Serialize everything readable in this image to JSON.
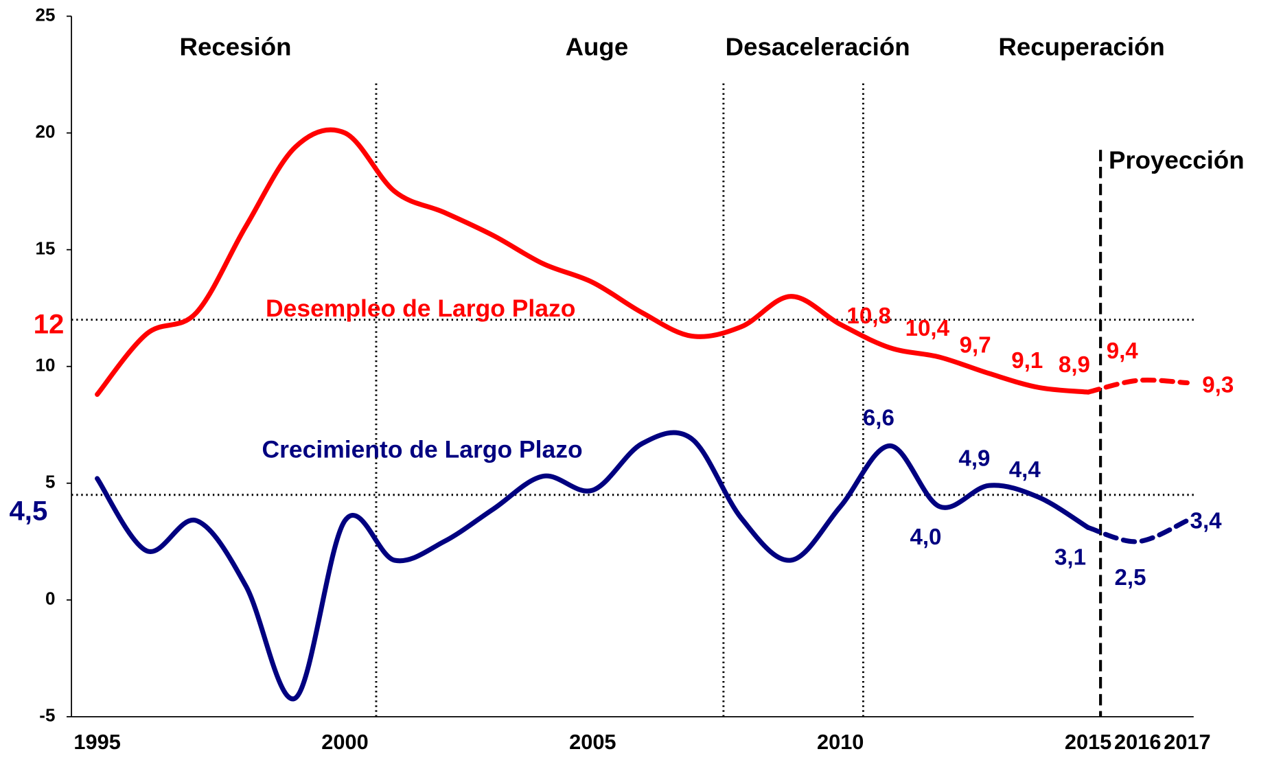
{
  "chart_data": {
    "type": "line",
    "x": [
      1995,
      1996,
      1997,
      1998,
      1999,
      2000,
      2001,
      2002,
      2003,
      2004,
      2005,
      2006,
      2007,
      2008,
      2009,
      2010,
      2011,
      2012,
      2013,
      2014,
      2015,
      2016,
      2017
    ],
    "xlim": [
      1994.48,
      2017.13
    ],
    "xticks": [
      1995,
      2000,
      2005,
      2010,
      2015,
      2016,
      2017
    ],
    "ylim": [
      -5,
      25
    ],
    "yticks": [
      -5,
      0,
      5,
      10,
      15,
      20,
      25
    ],
    "series": [
      {
        "name": "Desempleo de Largo Plazo",
        "color": "#ff0000",
        "values": [
          8.8,
          11.4,
          12.3,
          16.0,
          19.4,
          20.0,
          17.5,
          16.6,
          15.6,
          14.4,
          13.6,
          12.3,
          11.3,
          11.7,
          13.0,
          11.8,
          10.8,
          10.4,
          9.7,
          9.1,
          8.9,
          9.4,
          9.3
        ],
        "value_labels": [
          null,
          null,
          null,
          null,
          null,
          null,
          null,
          null,
          null,
          null,
          null,
          null,
          null,
          null,
          null,
          null,
          "10,8",
          "10,4",
          "9,7",
          "9,1",
          "8,9",
          "9,4",
          "9,3"
        ]
      },
      {
        "name": "Crecimiento de Largo Plazo",
        "color": "#000080",
        "values": [
          5.2,
          2.1,
          3.4,
          0.6,
          -4.2,
          3.4,
          1.7,
          2.5,
          3.9,
          5.3,
          4.7,
          6.7,
          6.9,
          3.5,
          1.7,
          4.0,
          6.6,
          4.0,
          4.9,
          4.4,
          3.1,
          2.5,
          3.4
        ],
        "value_labels": [
          null,
          null,
          null,
          null,
          null,
          null,
          null,
          null,
          null,
          null,
          null,
          null,
          null,
          null,
          null,
          null,
          "6,6",
          "4,0",
          "4,9",
          "4,4",
          "3,1",
          "2,5",
          "3,4"
        ]
      }
    ],
    "reference_lines": [
      {
        "value": 12,
        "label": "12",
        "color": "#ff0000"
      },
      {
        "value": 4.5,
        "label": "4,5",
        "color": "#000080"
      }
    ],
    "phases": [
      "Recesión",
      "Auge",
      "Desaceleración",
      "Recuperación"
    ],
    "phase_boundaries": [
      2000.63,
      2007.64,
      2010.46
    ],
    "projection": {
      "label": "Proyección",
      "x": 2015.25
    }
  }
}
